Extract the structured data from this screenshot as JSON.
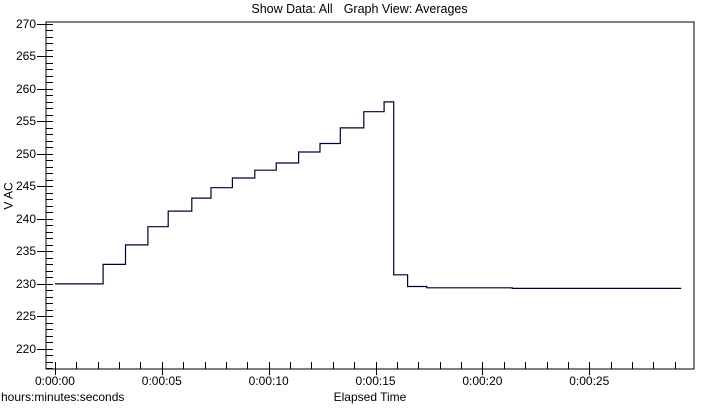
{
  "window": {
    "background": "#ffffff"
  },
  "header": {
    "title_left": "Show Data: All",
    "title_right": "Graph View: Averages"
  },
  "chart_data": {
    "type": "line",
    "subtype": "step",
    "title": "Show Data: All  Graph View: Averages",
    "line_color": "#00002e",
    "axis_color": "#000000",
    "grid": false,
    "legend": "none",
    "x_axis": {
      "label": "Elapsed Time",
      "unit_label": "hours:minutes:seconds",
      "range_s": [
        -0.42,
        29.9
      ],
      "minor_tick_interval_s": 1,
      "major_ticks": [
        {
          "t": 0,
          "label": "0:00:00"
        },
        {
          "t": 5,
          "label": "0:00:05"
        },
        {
          "t": 10,
          "label": "0:00:10"
        },
        {
          "t": 15,
          "label": "0:00:15"
        },
        {
          "t": 20,
          "label": "0:00:20"
        },
        {
          "t": 25,
          "label": "0:00:25"
        }
      ]
    },
    "y_axis": {
      "label": "V AC",
      "range": [
        216.9,
        270.3
      ],
      "minor_tick_interval": 1,
      "major_ticks": [
        220,
        225,
        230,
        235,
        240,
        245,
        250,
        255,
        260,
        265,
        270
      ]
    },
    "series": [
      {
        "name": "Averages",
        "points_t_s_v": [
          [
            0,
            230
          ],
          [
            2.25,
            230
          ],
          [
            2.25,
            233
          ],
          [
            3.3,
            233
          ],
          [
            3.3,
            236
          ],
          [
            4.35,
            236
          ],
          [
            4.35,
            238.8
          ],
          [
            5.3,
            238.8
          ],
          [
            5.3,
            241.2
          ],
          [
            6.4,
            241.2
          ],
          [
            6.4,
            243.2
          ],
          [
            7.3,
            243.2
          ],
          [
            7.3,
            244.8
          ],
          [
            8.3,
            244.8
          ],
          [
            8.3,
            246.3
          ],
          [
            9.35,
            246.3
          ],
          [
            9.35,
            247.5
          ],
          [
            10.35,
            247.5
          ],
          [
            10.35,
            248.6
          ],
          [
            11.4,
            248.6
          ],
          [
            11.4,
            250.3
          ],
          [
            12.4,
            250.3
          ],
          [
            12.4,
            251.6
          ],
          [
            13.35,
            251.6
          ],
          [
            13.35,
            254.0
          ],
          [
            14.45,
            254.0
          ],
          [
            14.45,
            256.5
          ],
          [
            15.4,
            256.5
          ],
          [
            15.4,
            258.0
          ],
          [
            15.85,
            258.0
          ],
          [
            15.85,
            231.4
          ],
          [
            16.5,
            231.4
          ],
          [
            16.5,
            229.6
          ],
          [
            17.4,
            229.6
          ],
          [
            17.4,
            229.4
          ],
          [
            21.4,
            229.4
          ],
          [
            21.4,
            229.3
          ],
          [
            29.3,
            229.3
          ]
        ]
      }
    ]
  }
}
